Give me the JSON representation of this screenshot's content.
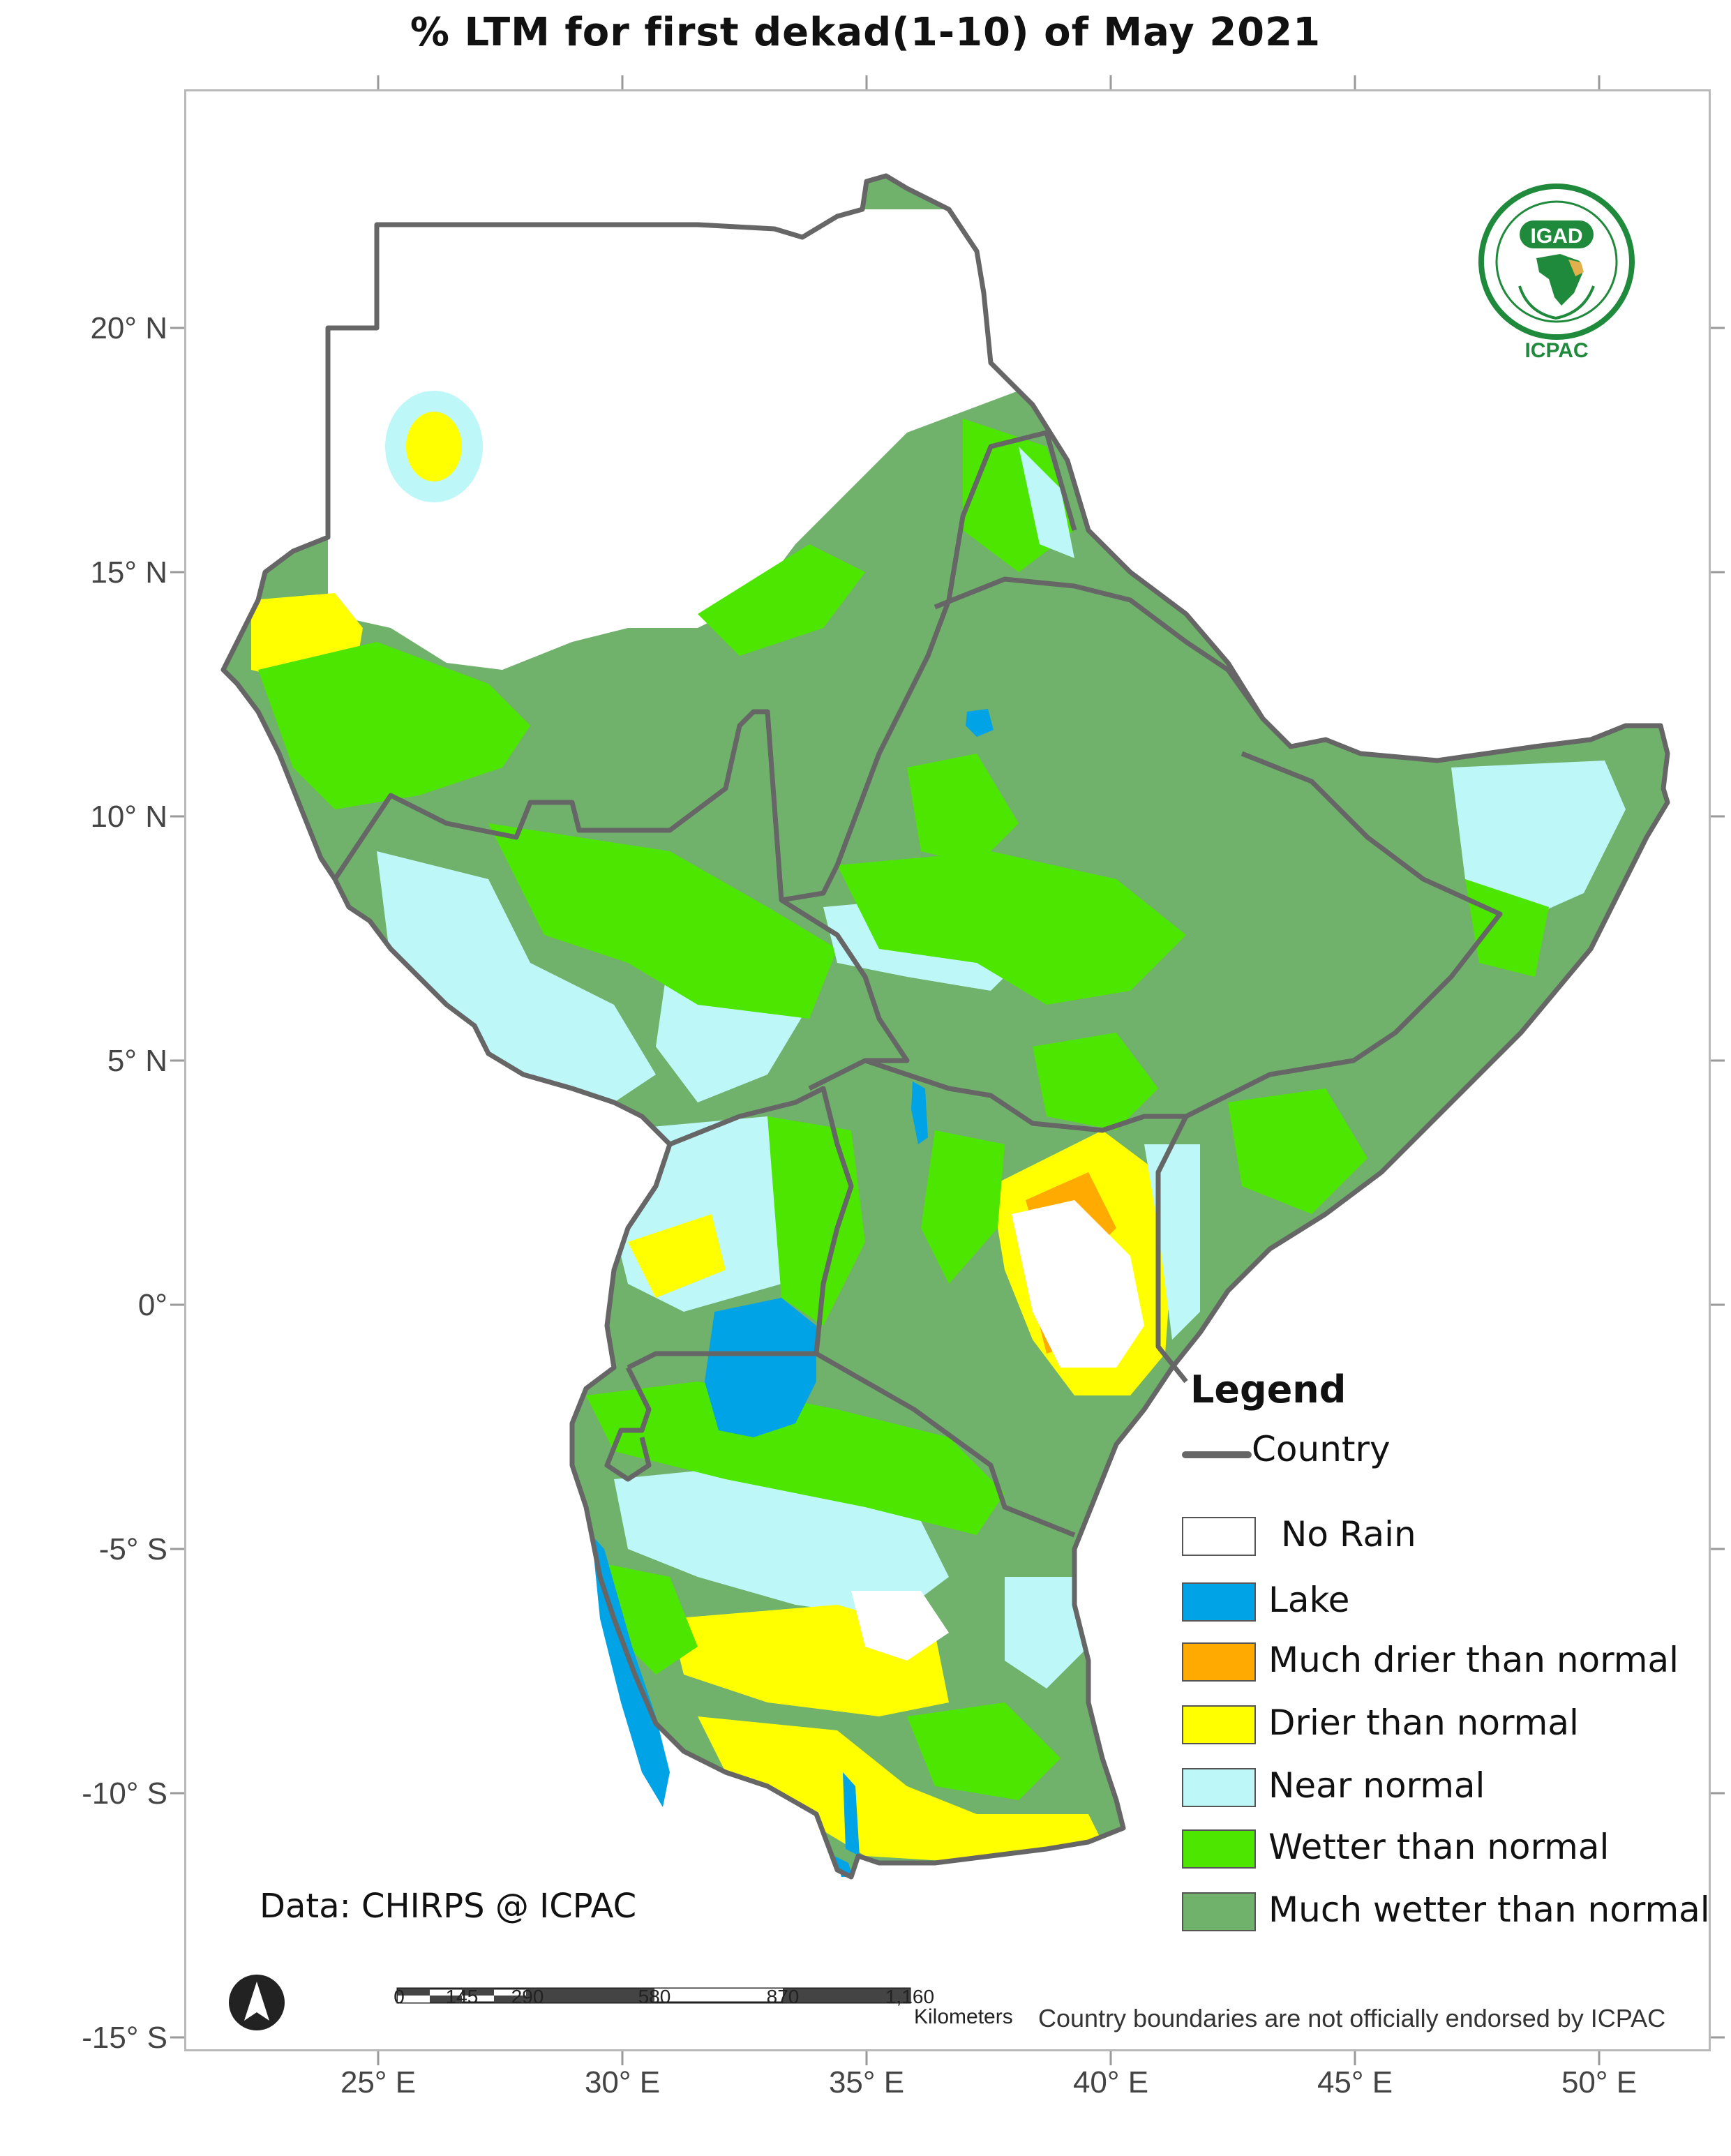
{
  "title": "% LTM  for  first dekad(1-10) of May  2021",
  "axes": {
    "y_ticks": [
      "20° N",
      "15° N",
      "10° N",
      "5° N",
      "0°",
      "-5° S",
      "-10° S",
      "-15° S"
    ],
    "x_ticks": [
      "25° E",
      "30° E",
      "35° E",
      "40° E",
      "45° E",
      "50° E"
    ]
  },
  "legend": {
    "title": "Legend",
    "country_label": "Country",
    "items": [
      {
        "label": "No Rain",
        "color": "#ffffff"
      },
      {
        "label": "Lake",
        "color": "#00a3e6"
      },
      {
        "label": "Much drier than normal",
        "color": "#ffaa00"
      },
      {
        "label": "Drier than normal",
        "color": "#ffff00"
      },
      {
        "label": "Near normal",
        "color": "#bef7f7"
      },
      {
        "label": "Wetter than normal",
        "color": "#4ce600"
      },
      {
        "label": "Much wetter than normal",
        "color": "#70b26b"
      }
    ]
  },
  "credit": "Data: CHIRPS @ ICPAC",
  "boundary_note": "Country boundaries are not officially endorsed by ICPAC",
  "scale": {
    "ticks": [
      "0",
      "145",
      "290",
      "580",
      "870",
      "1,160"
    ],
    "unit": "Kilometers"
  },
  "logo": {
    "top_text": "IGAD",
    "bottom_text": "ICPAC"
  },
  "colors": {
    "country_border": "#666666",
    "frame": "#b9b9b9"
  },
  "icons": [
    "north-arrow-icon",
    "igad-logo-icon"
  ]
}
